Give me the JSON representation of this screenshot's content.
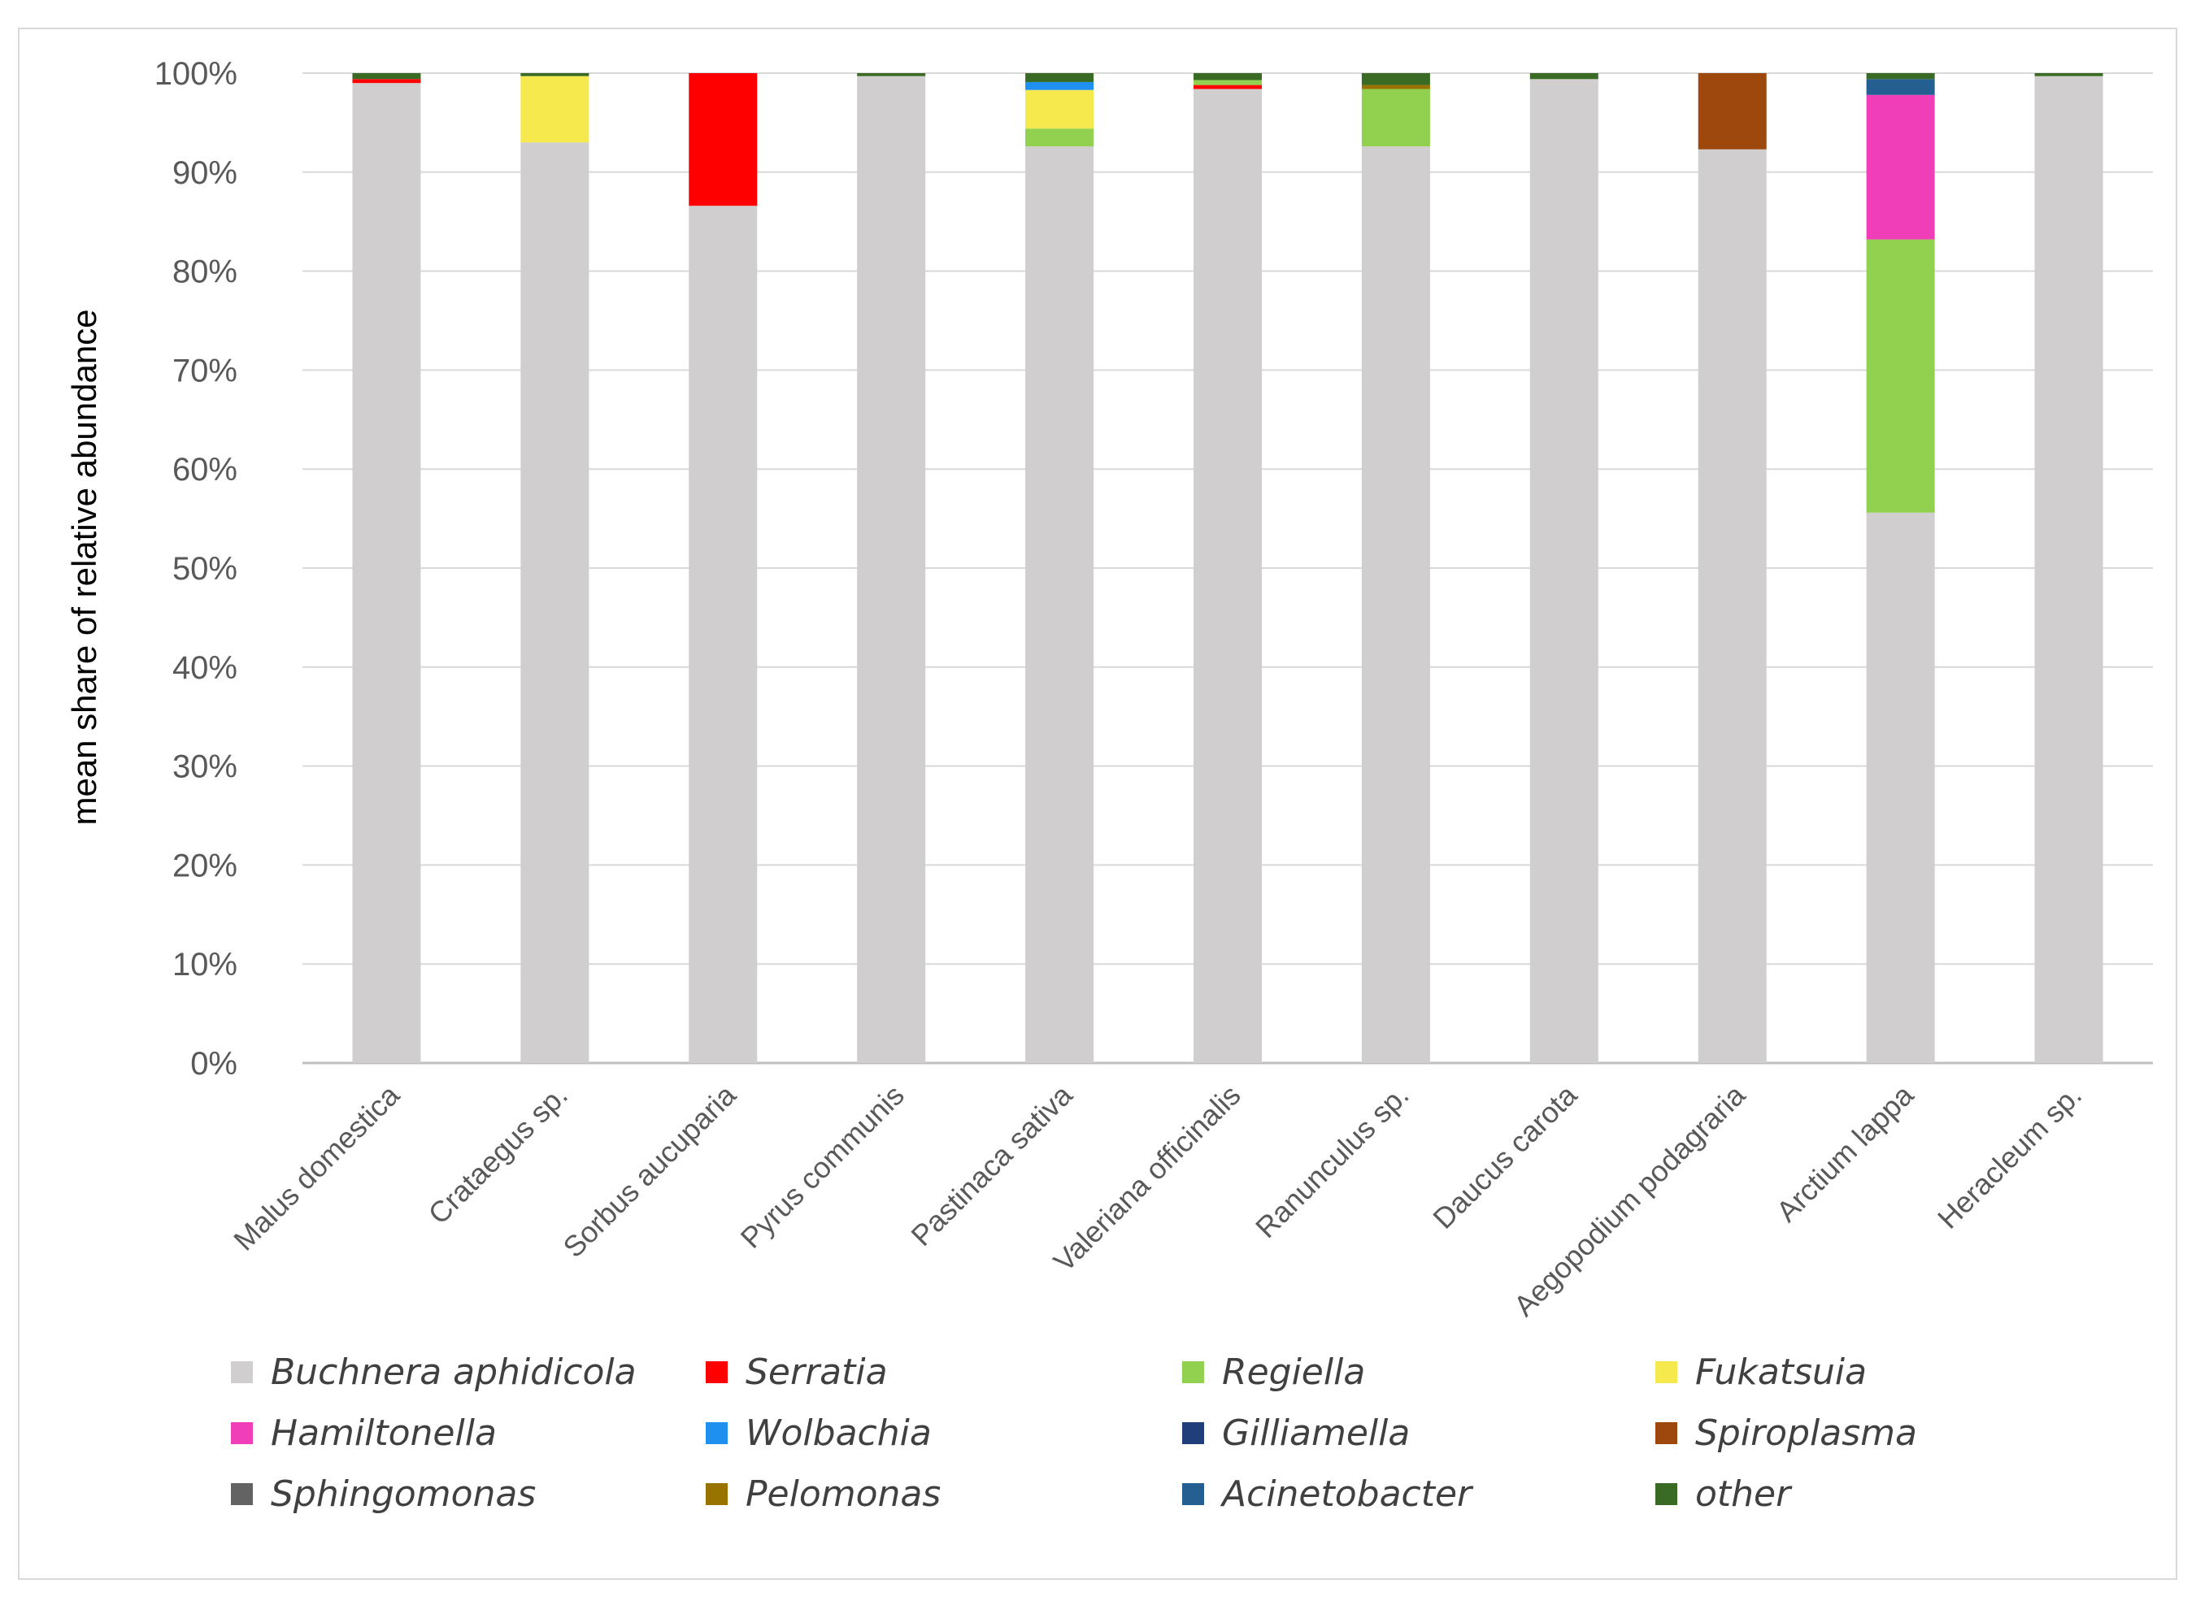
{
  "chart_data": {
    "type": "stacked-bar",
    "title": "",
    "xlabel": "",
    "ylabel": "mean share of relative abundance",
    "ylim": [
      0,
      100
    ],
    "ytick_values": [
      0,
      10,
      20,
      30,
      40,
      50,
      60,
      70,
      80,
      90,
      100
    ],
    "ytick_labels": [
      "0%",
      "10%",
      "20%",
      "30%",
      "40%",
      "50%",
      "60%",
      "70%",
      "80%",
      "90%",
      "100%"
    ],
    "grid": true,
    "legend_position": "bottom",
    "categories": [
      "Malus domestica",
      "Crataegus sp.",
      "Sorbus aucuparia",
      "Pyrus communis",
      "Pastinaca sativa",
      "Valeriana officinalis",
      "Ranunculus sp.",
      "Daucus carota",
      "Aegopodium podagraria",
      "Arctium lappa",
      "Heracleum sp."
    ],
    "series": [
      {
        "name": "Buchnera aphidicola",
        "color": "#d0cece",
        "values": [
          99.0,
          93.0,
          86.6,
          99.7,
          92.6,
          98.4,
          92.6,
          99.4,
          92.3,
          55.6,
          99.7
        ]
      },
      {
        "name": "Serratia",
        "color": "#ff0000",
        "values": [
          0.4,
          0,
          13.4,
          0,
          0,
          0.4,
          0,
          0,
          0,
          0,
          0
        ]
      },
      {
        "name": "Regiella",
        "color": "#92d050",
        "values": [
          0,
          0,
          0,
          0,
          1.8,
          0.5,
          5.8,
          0,
          0,
          27.6,
          0
        ]
      },
      {
        "name": "Fukatsuia",
        "color": "#f5e94d",
        "values": [
          0,
          6.7,
          0,
          0,
          3.9,
          0,
          0,
          0,
          0,
          0,
          0
        ]
      },
      {
        "name": "Hamiltonella",
        "color": "#f03db8",
        "values": [
          0,
          0,
          0,
          0,
          0,
          0,
          0,
          0,
          0,
          14.6,
          0
        ]
      },
      {
        "name": "Wolbachia",
        "color": "#1f8ff0",
        "values": [
          0,
          0,
          0,
          0,
          0.8,
          0,
          0,
          0,
          0,
          0,
          0
        ]
      },
      {
        "name": "Gilliamella",
        "color": "#1f3e7a",
        "values": [
          0,
          0,
          0,
          0,
          0,
          0,
          0,
          0,
          0,
          0,
          0
        ]
      },
      {
        "name": "Spiroplasma",
        "color": "#9e480e",
        "values": [
          0,
          0,
          0,
          0,
          0,
          0,
          0,
          0,
          7.7,
          0,
          0
        ]
      },
      {
        "name": "Sphingomonas",
        "color": "#636363",
        "values": [
          0,
          0,
          0,
          0,
          0,
          0,
          0,
          0,
          0,
          0,
          0
        ]
      },
      {
        "name": "Pelomonas",
        "color": "#997300",
        "values": [
          0,
          0,
          0,
          0,
          0,
          0,
          0.4,
          0,
          0,
          0,
          0
        ]
      },
      {
        "name": "Acinetobacter",
        "color": "#255e91",
        "values": [
          0,
          0,
          0,
          0,
          0,
          0,
          0,
          0,
          0,
          1.6,
          0
        ]
      },
      {
        "name": "other",
        "color": "#3a6b25",
        "values": [
          0.6,
          0.3,
          0,
          0.3,
          0.9,
          0.7,
          1.2,
          0.6,
          0,
          0.6,
          0.3
        ]
      }
    ]
  },
  "colors": {
    "gridline": "#d9d9d9",
    "axis": "#bfbfbf",
    "tick_text": "#595959"
  }
}
